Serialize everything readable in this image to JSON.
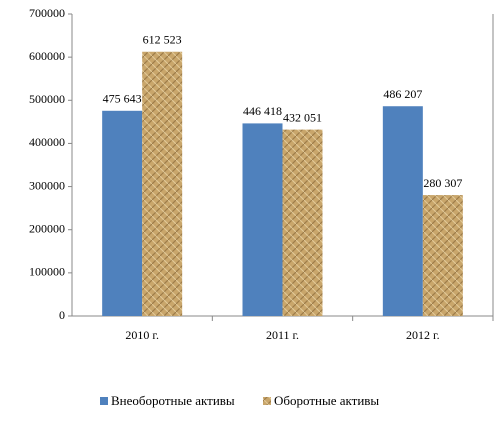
{
  "chart_data": {
    "type": "bar",
    "categories": [
      "2010 г.",
      "2011 г.",
      "2012 г."
    ],
    "series": [
      {
        "name": "Внеоборотные активы",
        "color": "#4f81bd",
        "values": [
          475643,
          446418,
          486207
        ],
        "value_labels": [
          "475 643",
          "446 418",
          "486 207"
        ]
      },
      {
        "name": "Оборотные активы",
        "color": "#c9a66b",
        "values": [
          612523,
          432051,
          280307
        ],
        "value_labels": [
          "612 523",
          "432 051",
          "280 307"
        ]
      }
    ],
    "ylim": [
      0,
      700000
    ],
    "yticks": [
      0,
      100000,
      200000,
      300000,
      400000,
      500000,
      600000,
      700000
    ],
    "grid": false,
    "legend": "bottom"
  }
}
